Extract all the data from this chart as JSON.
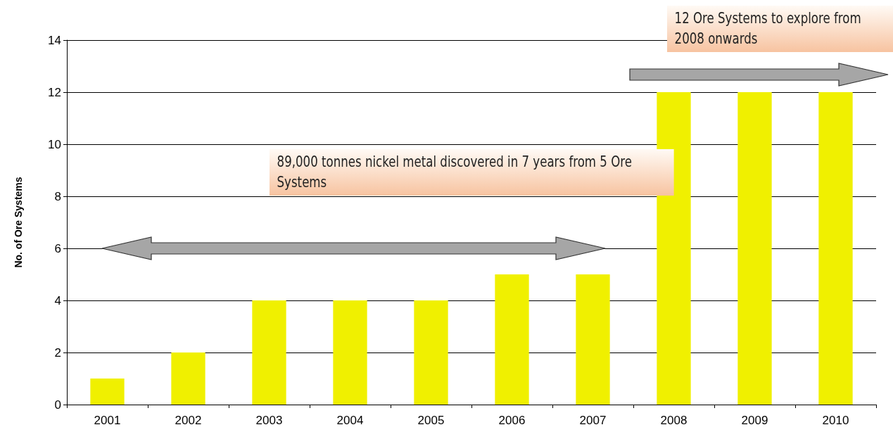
{
  "chart_data": {
    "type": "bar",
    "ylabel": "No. of Ore Systems",
    "categories": [
      "2001",
      "2002",
      "2003",
      "2004",
      "2005",
      "2006",
      "2007",
      "2008",
      "2009",
      "2010"
    ],
    "values": [
      1,
      2,
      4,
      4,
      4,
      5,
      5,
      12,
      12,
      12
    ],
    "color": "#f0f000",
    "ylim": [
      0,
      14
    ],
    "yticks": [
      0,
      2,
      4,
      6,
      8,
      10,
      12,
      14
    ],
    "grid": "y",
    "annotations": [
      "89,000 tonnes nickel metal discovered in 7 years from 5 Ore Systems",
      "12 Ore Systems to explore from 2008 onwards"
    ]
  }
}
